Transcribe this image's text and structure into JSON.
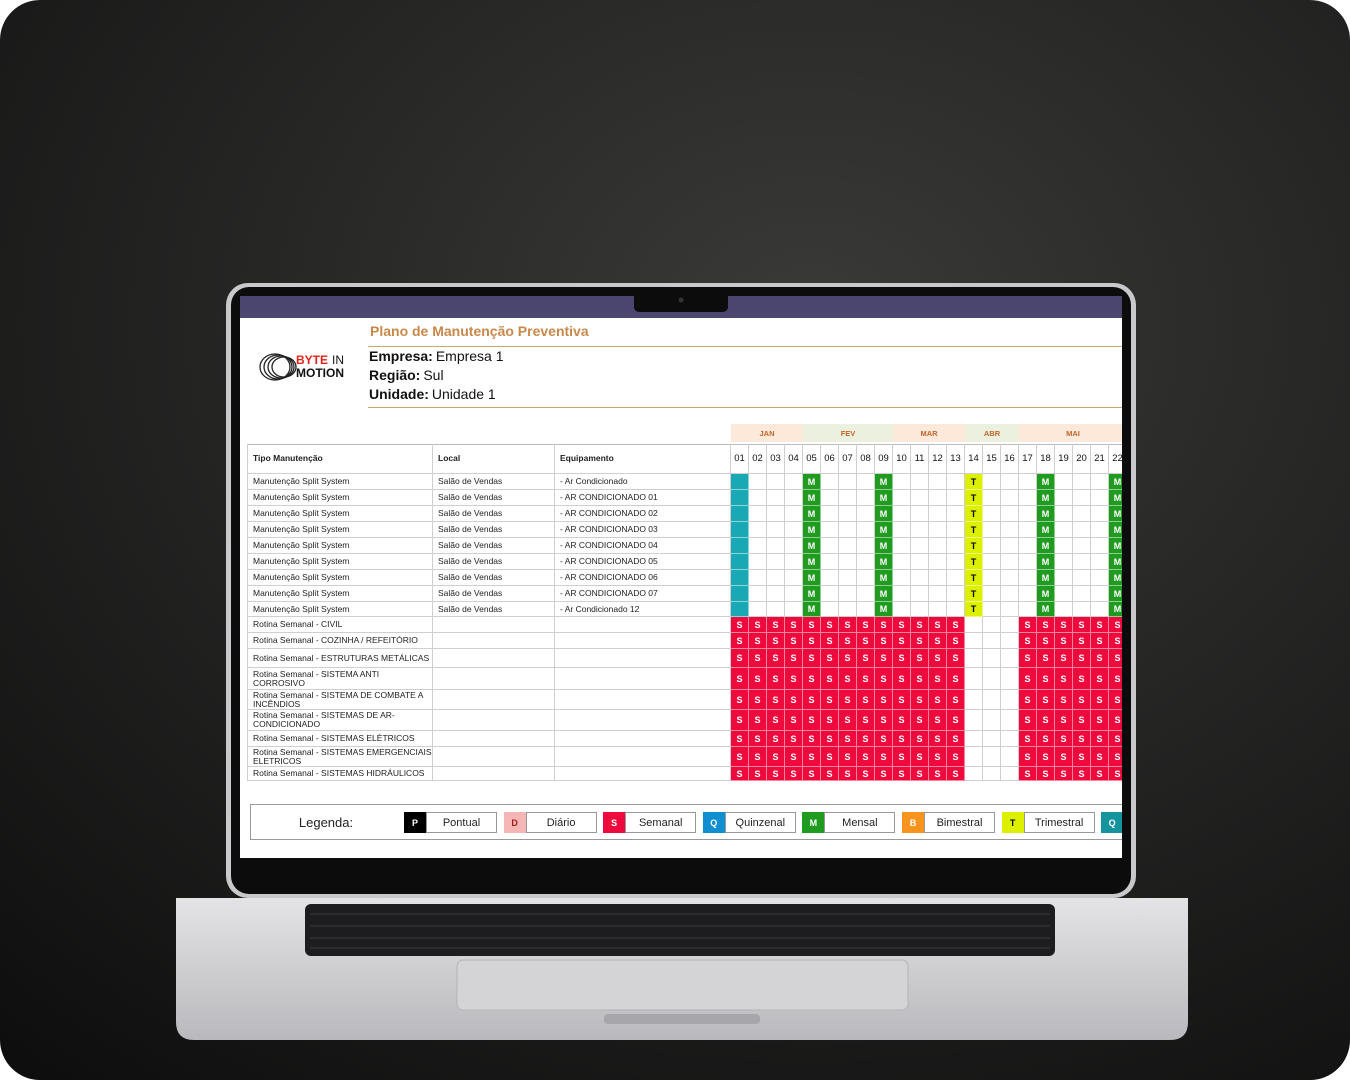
{
  "header": {
    "title": "Plano de Manutenção Preventiva",
    "logo": {
      "word1": "BYTE",
      "word2": "IN",
      "word3": "MOTION"
    },
    "fields": [
      {
        "label": "Empresa:",
        "value": "Empresa 1"
      },
      {
        "label": "Região:",
        "value": "Sul"
      },
      {
        "label": "Unidade:",
        "value": "Unidade 1"
      }
    ]
  },
  "table": {
    "columns": [
      "Tipo Manutenção",
      "Local",
      "Equipamento"
    ],
    "weeks": [
      "01",
      "02",
      "03",
      "04",
      "05",
      "06",
      "07",
      "08",
      "09",
      "10",
      "11",
      "12",
      "13",
      "14",
      "15",
      "16",
      "17",
      "18",
      "19",
      "20",
      "21",
      "22"
    ],
    "months": [
      {
        "label": "JAN",
        "from": "01",
        "color": "#fde9d9"
      },
      {
        "label": "FEV",
        "from": "05",
        "color": "#ebf1de"
      },
      {
        "label": "MAR",
        "from": "10",
        "color": "#fde9d9"
      },
      {
        "label": "ABR",
        "from": "14",
        "color": "#ebf1de"
      },
      {
        "label": "MAI",
        "from": "17",
        "color": "#fde9d9"
      }
    ],
    "rows": [
      {
        "tipo": "Manutenção Split System",
        "local": "Salão de Vendas",
        "equipamento": "- Ar Condicionado",
        "schedule": [
          {
            "color": "#19a9b5",
            "weeks": [
              "01"
            ]
          },
          {
            "code": "M",
            "weeks": [
              "05",
              "09",
              "18",
              "22"
            ]
          },
          {
            "code": "T",
            "weeks": [
              "14"
            ]
          }
        ]
      },
      {
        "tipo": "Manutenção Split System",
        "local": "Salão de Vendas",
        "equipamento": "- AR CONDICIONADO 01",
        "schedule": [
          {
            "color": "#19a9b5",
            "weeks": [
              "01"
            ]
          },
          {
            "code": "M",
            "weeks": [
              "05",
              "09",
              "18",
              "22"
            ]
          },
          {
            "code": "T",
            "weeks": [
              "14"
            ]
          }
        ]
      },
      {
        "tipo": "Manutenção Split System",
        "local": "Salão de Vendas",
        "equipamento": "- AR CONDICIONADO 02",
        "schedule": [
          {
            "color": "#19a9b5",
            "weeks": [
              "01"
            ]
          },
          {
            "code": "M",
            "weeks": [
              "05",
              "09",
              "18",
              "22"
            ]
          },
          {
            "code": "T",
            "weeks": [
              "14"
            ]
          }
        ]
      },
      {
        "tipo": "Manutenção Split System",
        "local": "Salão de Vendas",
        "equipamento": "- AR CONDICIONADO 03",
        "schedule": [
          {
            "color": "#19a9b5",
            "weeks": [
              "01"
            ]
          },
          {
            "code": "M",
            "weeks": [
              "05",
              "09",
              "18",
              "22"
            ]
          },
          {
            "code": "T",
            "weeks": [
              "14"
            ]
          }
        ]
      },
      {
        "tipo": "Manutenção Split System",
        "local": "Salão de Vendas",
        "equipamento": "- AR CONDICIONADO 04",
        "schedule": [
          {
            "color": "#19a9b5",
            "weeks": [
              "01"
            ]
          },
          {
            "code": "M",
            "weeks": [
              "05",
              "09",
              "18",
              "22"
            ]
          },
          {
            "code": "T",
            "weeks": [
              "14"
            ]
          }
        ]
      },
      {
        "tipo": "Manutenção Split System",
        "local": "Salão de Vendas",
        "equipamento": "- AR CONDICIONADO 05",
        "schedule": [
          {
            "color": "#19a9b5",
            "weeks": [
              "01"
            ]
          },
          {
            "code": "M",
            "weeks": [
              "05",
              "09",
              "18",
              "22"
            ]
          },
          {
            "code": "T",
            "weeks": [
              "14"
            ]
          }
        ]
      },
      {
        "tipo": "Manutenção Split System",
        "local": "Salão de Vendas",
        "equipamento": "- AR CONDICIONADO 06",
        "schedule": [
          {
            "color": "#19a9b5",
            "weeks": [
              "01"
            ]
          },
          {
            "code": "M",
            "weeks": [
              "05",
              "09",
              "18",
              "22"
            ]
          },
          {
            "code": "T",
            "weeks": [
              "14"
            ]
          }
        ]
      },
      {
        "tipo": "Manutenção Split System",
        "local": "Salão de Vendas",
        "equipamento": "- AR CONDICIONADO 07",
        "schedule": [
          {
            "color": "#19a9b5",
            "weeks": [
              "01"
            ]
          },
          {
            "code": "M",
            "weeks": [
              "05",
              "09",
              "18",
              "22"
            ]
          },
          {
            "code": "T",
            "weeks": [
              "14"
            ]
          }
        ]
      },
      {
        "tipo": "Manutenção Split System",
        "local": "Salão de Vendas",
        "equipamento": "- Ar Condicionado 12",
        "schedule": [
          {
            "color": "#19a9b5",
            "weeks": [
              "01"
            ]
          },
          {
            "code": "M",
            "weeks": [
              "05",
              "09",
              "18",
              "22"
            ]
          },
          {
            "code": "T",
            "weeks": [
              "14"
            ]
          }
        ]
      },
      {
        "tipo": "Rotina Semanal - CIVIL",
        "schedule": [
          {
            "code": "S",
            "weeks": [
              "01",
              "02",
              "03",
              "04",
              "05",
              "06",
              "07",
              "08",
              "09",
              "10",
              "11",
              "12",
              "13",
              "17",
              "18",
              "19",
              "20",
              "21",
              "22"
            ]
          }
        ]
      },
      {
        "tipo": "Rotina Semanal - COZINHA / REFEITÓRIO",
        "schedule": [
          {
            "code": "S",
            "weeks": [
              "01",
              "02",
              "03",
              "04",
              "05",
              "06",
              "07",
              "08",
              "09",
              "10",
              "11",
              "12",
              "13",
              "17",
              "18",
              "19",
              "20",
              "21",
              "22"
            ]
          }
        ]
      },
      {
        "tipo": "Rotina Semanal - ESTRUTURAS METÁLICAS",
        "schedule": [
          {
            "code": "S",
            "weeks": [
              "01",
              "02",
              "03",
              "04",
              "05",
              "06",
              "07",
              "08",
              "09",
              "10",
              "11",
              "12",
              "13",
              "17",
              "18",
              "19",
              "20",
              "21",
              "22"
            ]
          }
        ]
      },
      {
        "tipo": "Rotina Semanal - SISTEMA ANTI CORROSIVO",
        "schedule": [
          {
            "code": "S",
            "weeks": [
              "01",
              "02",
              "03",
              "04",
              "05",
              "06",
              "07",
              "08",
              "09",
              "10",
              "11",
              "12",
              "13",
              "17",
              "18",
              "19",
              "20",
              "21",
              "22"
            ]
          }
        ]
      },
      {
        "tipo": "Rotina Semanal - SISTEMA DE COMBATE A INCÊNDIOS",
        "schedule": [
          {
            "code": "S",
            "weeks": [
              "01",
              "02",
              "03",
              "04",
              "05",
              "06",
              "07",
              "08",
              "09",
              "10",
              "11",
              "12",
              "13",
              "17",
              "18",
              "19",
              "20",
              "21",
              "22"
            ]
          }
        ]
      },
      {
        "tipo": "Rotina Semanal - SISTEMAS DE AR-CONDICIONADO",
        "schedule": [
          {
            "code": "S",
            "weeks": [
              "01",
              "02",
              "03",
              "04",
              "05",
              "06",
              "07",
              "08",
              "09",
              "10",
              "11",
              "12",
              "13",
              "17",
              "18",
              "19",
              "20",
              "21",
              "22"
            ]
          }
        ]
      },
      {
        "tipo": "Rotina Semanal - SISTEMAS ELÉTRICOS",
        "schedule": [
          {
            "code": "S",
            "weeks": [
              "01",
              "02",
              "03",
              "04",
              "05",
              "06",
              "07",
              "08",
              "09",
              "10",
              "11",
              "12",
              "13",
              "17",
              "18",
              "19",
              "20",
              "21",
              "22"
            ]
          }
        ]
      },
      {
        "tipo": "Rotina Semanal - SISTEMAS EMERGENCIAIS ELETRICOS",
        "schedule": [
          {
            "code": "S",
            "weeks": [
              "01",
              "02",
              "03",
              "04",
              "05",
              "06",
              "07",
              "08",
              "09",
              "10",
              "11",
              "12",
              "13",
              "17",
              "18",
              "19",
              "20",
              "21",
              "22"
            ]
          }
        ]
      },
      {
        "tipo": "Rotina Semanal - SISTEMAS HIDRÁULICOS",
        "schedule": [
          {
            "code": "S",
            "weeks": [
              "01",
              "02",
              "03",
              "04",
              "05",
              "06",
              "07",
              "08",
              "09",
              "10",
              "11",
              "12",
              "13",
              "17",
              "18",
              "19",
              "20",
              "21",
              "22"
            ]
          }
        ]
      }
    ]
  },
  "legend": {
    "label": "Legenda:",
    "items": [
      {
        "code": "P",
        "name": "Pontual",
        "color": "#000000",
        "textColor": "#ffffff"
      },
      {
        "code": "D",
        "name": "Diário",
        "color": "#f5b7b5",
        "textColor": "#9c1c1c"
      },
      {
        "code": "S",
        "name": "Semanal",
        "color": "#ee0a3d",
        "textColor": "#ffffff"
      },
      {
        "code": "Q",
        "name": "Quinzenal",
        "color": "#0f8fcf",
        "textColor": "#ffffff"
      },
      {
        "code": "M",
        "name": "Mensal",
        "color": "#1f9c1f",
        "textColor": "#ffffff"
      },
      {
        "code": "B",
        "name": "Bimestral",
        "color": "#f7941d",
        "textColor": "#ffffff"
      },
      {
        "code": "T",
        "name": "Trimestral",
        "color": "#dcf000",
        "textColor": "#000000"
      },
      {
        "code": "Q",
        "color": "#14959e",
        "textColor": "#ffffff"
      }
    ]
  }
}
